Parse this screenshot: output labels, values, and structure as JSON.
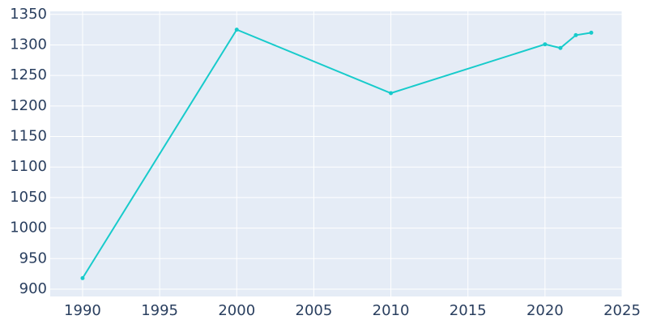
{
  "chart_data": {
    "type": "line",
    "x": [
      1990,
      2000,
      2010,
      2020,
      2021,
      2022,
      2023
    ],
    "series": [
      {
        "color": "#17cbcb",
        "values": [
          918,
          1325,
          1221,
          1301,
          1295,
          1316,
          1320
        ]
      }
    ],
    "xlim": [
      1987.9,
      2025
    ],
    "xticks": [
      1990,
      1995,
      2000,
      2005,
      2010,
      2015,
      2020,
      2025
    ],
    "ylim": [
      888,
      1355
    ],
    "yticks": [
      900,
      950,
      1000,
      1050,
      1100,
      1150,
      1200,
      1250,
      1300,
      1350
    ],
    "grid": true
  }
}
